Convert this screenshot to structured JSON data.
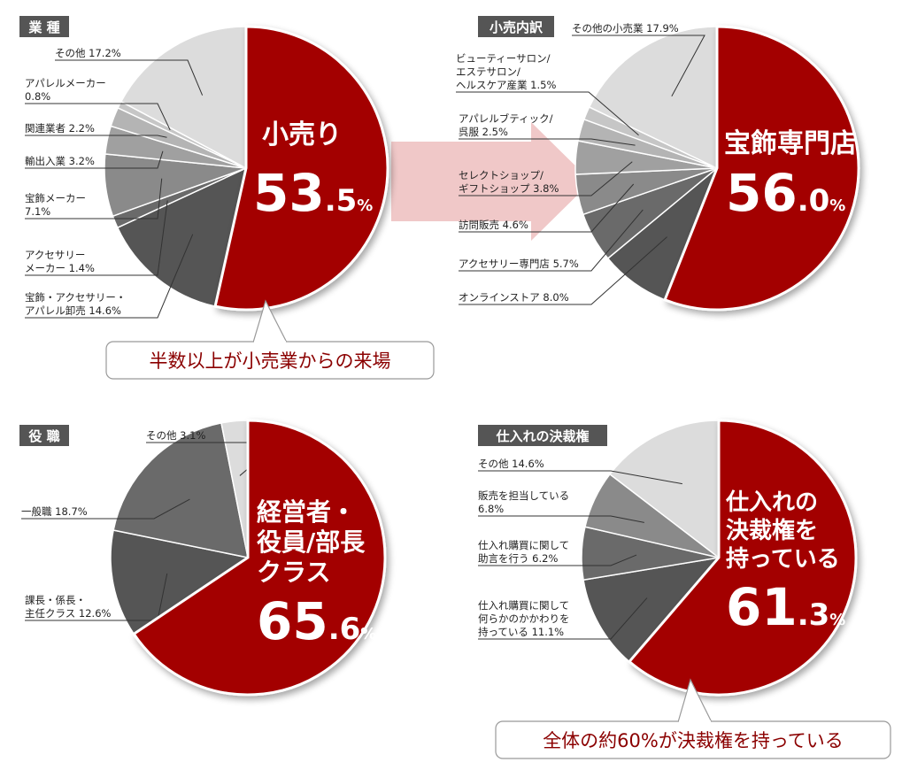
{
  "colors": {
    "highlight": "#a30000",
    "highlight_shadow": "#7a0000",
    "others": [
      "#d8d8d8",
      "#c4c4c4",
      "#b0b0b0",
      "#9a9a9a",
      "#858585",
      "#6e6e6e",
      "#5a5a5a",
      "#4a4a4a"
    ],
    "label_bg": "#555555",
    "arrow": "#f0c8c8",
    "callout_text": "#8b0000"
  },
  "chart_data": [
    {
      "type": "pie",
      "title": "業 種",
      "highlight": {
        "label_lines": [
          "小売り"
        ],
        "value": "53.5",
        "num_int": "53",
        "num_dec": ".5",
        "unit": "%"
      },
      "slices": [
        {
          "label_lines": [
            "宝飾・アクセサリー・",
            "アパレル卸売 14.6%"
          ],
          "value": 14.6
        },
        {
          "label_lines": [
            "アクセサリー",
            "メーカー 1.4%"
          ],
          "value": 1.4
        },
        {
          "label_lines": [
            "宝飾メーカー",
            "7.1%"
          ],
          "value": 7.1
        },
        {
          "label_lines": [
            "輸出入業 3.2%"
          ],
          "value": 3.2
        },
        {
          "label_lines": [
            "関連業者 2.2%"
          ],
          "value": 2.2
        },
        {
          "label_lines": [
            "アパレルメーカー",
            "0.8%"
          ],
          "value": 0.8
        },
        {
          "label_lines": [
            "その他 17.2%"
          ],
          "value": 17.2
        }
      ],
      "callout": "半数以上が小売業からの来場"
    },
    {
      "type": "pie",
      "title": "小売内訳",
      "highlight": {
        "label_lines": [
          "宝飾専門店"
        ],
        "value": "56.0",
        "num_int": "56",
        "num_dec": ".0",
        "unit": "%"
      },
      "slices": [
        {
          "label_lines": [
            "オンラインストア 8.0%"
          ],
          "value": 8.0
        },
        {
          "label_lines": [
            "アクセサリー専門店 5.7%"
          ],
          "value": 5.7
        },
        {
          "label_lines": [
            "訪問販売 4.6%"
          ],
          "value": 4.6
        },
        {
          "label_lines": [
            "セレクトショップ/",
            "ギフトショップ 3.8%"
          ],
          "value": 3.8
        },
        {
          "label_lines": [
            "アパレルブティック/",
            "呉服 2.5%"
          ],
          "value": 2.5
        },
        {
          "label_lines": [
            "ビューティーサロン/",
            "エステサロン/",
            "ヘルスケア産業 1.5%"
          ],
          "value": 1.5
        },
        {
          "label_lines": [
            "その他の小売業 17.9%"
          ],
          "value": 17.9
        }
      ]
    },
    {
      "type": "pie",
      "title": "役 職",
      "highlight": {
        "label_lines": [
          "経営者・",
          "役員/部長",
          "クラス"
        ],
        "value": "65.6",
        "num_int": "65",
        "num_dec": ".6",
        "unit": "%"
      },
      "slices": [
        {
          "label_lines": [
            "課長・係長・",
            "主任クラス 12.6%"
          ],
          "value": 12.6
        },
        {
          "label_lines": [
            "一般職 18.7%"
          ],
          "value": 18.7
        },
        {
          "label_lines": [
            "その他 3.1%"
          ],
          "value": 3.1
        }
      ]
    },
    {
      "type": "pie",
      "title": "仕入れの決裁権",
      "highlight": {
        "label_lines": [
          "仕入れの",
          "決裁権を",
          "持っている"
        ],
        "value": "61.3",
        "num_int": "61",
        "num_dec": ".3",
        "unit": "%"
      },
      "slices": [
        {
          "label_lines": [
            "仕入れ購買に関して",
            "何らかのかかわりを",
            "持っている 11.1%"
          ],
          "value": 11.1
        },
        {
          "label_lines": [
            "仕入れ購買に関して",
            "助言を行う 6.2%"
          ],
          "value": 6.2
        },
        {
          "label_lines": [
            "販売を担当している",
            "6.8%"
          ],
          "value": 6.8
        },
        {
          "label_lines": [
            "その他 14.6%"
          ],
          "value": 14.6
        }
      ],
      "callout": "全体の約60%が決裁権を持っている"
    }
  ]
}
